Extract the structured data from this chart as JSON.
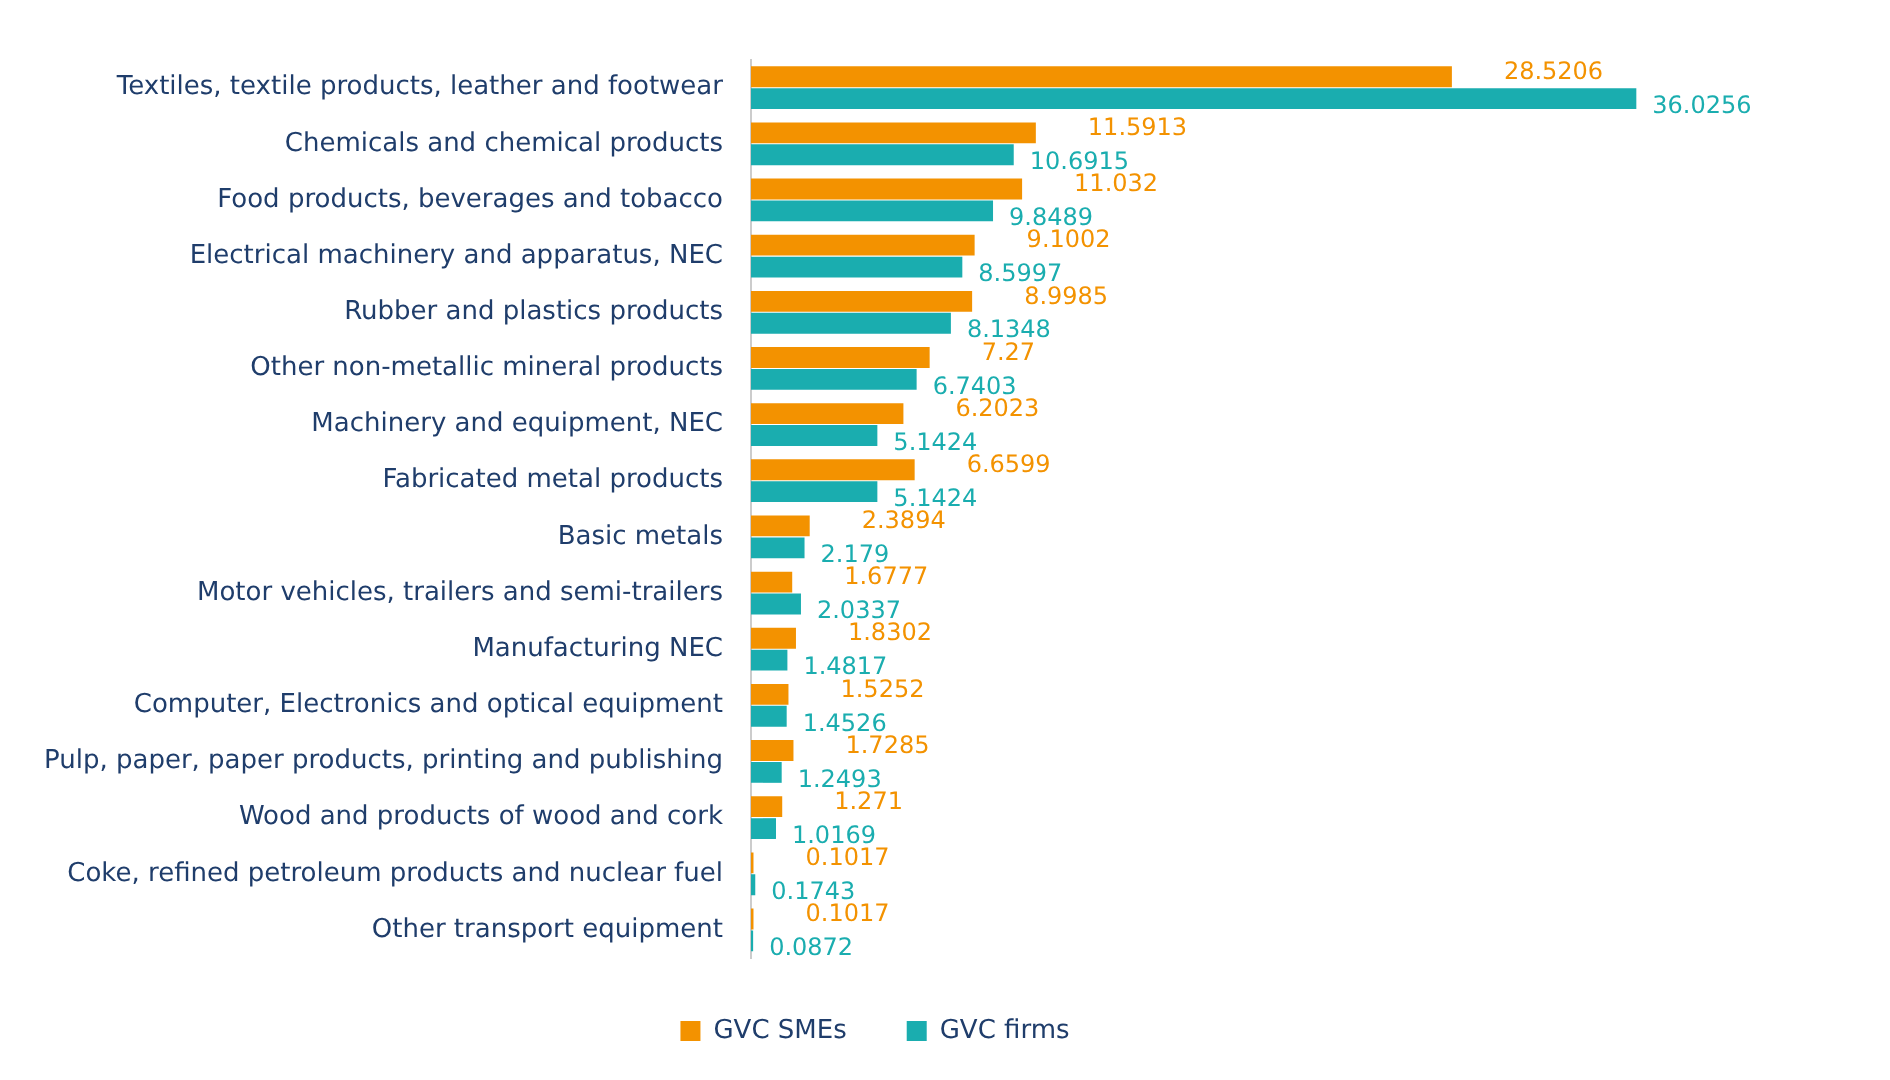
{
  "chart_data": {
    "type": "bar",
    "orientation": "horizontal",
    "categories": [
      "Textiles, textile products, leather and footwear",
      "Chemicals and chemical products",
      "Food products, beverages and tobacco",
      "Electrical machinery and apparatus, NEC",
      "Rubber and plastics products",
      "Other non-metallic mineral products",
      "Machinery and equipment, NEC",
      "Fabricated metal products",
      "Basic metals",
      "Motor vehicles, trailers and semi-trailers",
      "Manufacturing NEC",
      "Computer, Electronics and optical equipment",
      "Pulp, paper, paper products, printing and publishing",
      "Wood and products of wood and cork",
      "Coke, refined petroleum products and nuclear fuel",
      "Other transport equipment"
    ],
    "series": [
      {
        "name": "GVC SMEs",
        "color": "#f39200",
        "values": [
          28.5206,
          11.5913,
          11.032,
          9.1002,
          8.9985,
          7.27,
          6.2023,
          6.6599,
          2.3894,
          1.6777,
          1.8302,
          1.5252,
          1.7285,
          1.271,
          0.1017,
          0.1017
        ]
      },
      {
        "name": "GVC firms",
        "color": "#1aadaf",
        "values": [
          36.0256,
          10.6915,
          9.8489,
          8.5997,
          8.1348,
          6.7403,
          5.1424,
          5.1424,
          2.179,
          2.0337,
          1.4817,
          1.4526,
          1.2493,
          1.0169,
          0.1743,
          0.0872
        ]
      }
    ],
    "data_labels": true,
    "legend": "bottom",
    "grid": false,
    "tick_labels": "y"
  }
}
